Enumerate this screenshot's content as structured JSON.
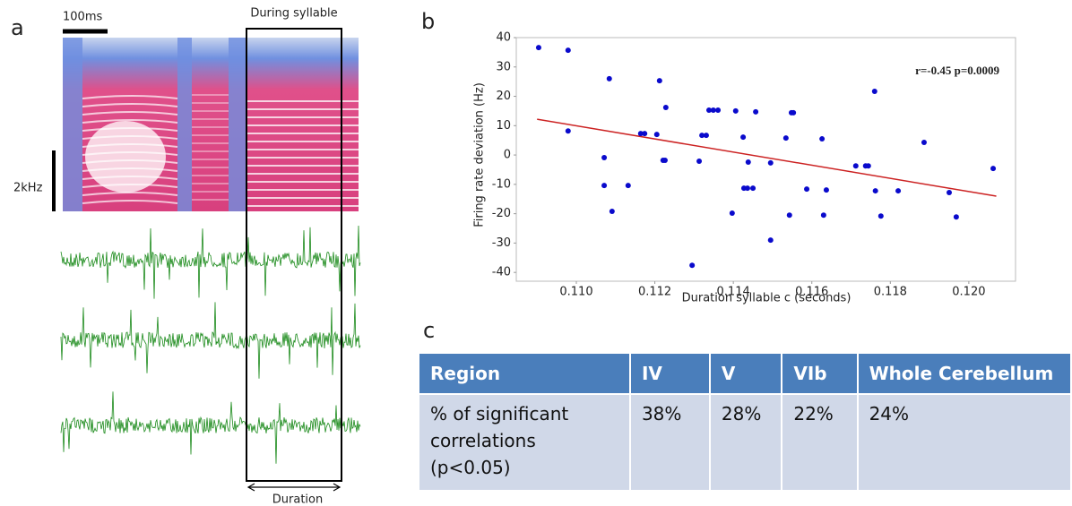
{
  "panels": {
    "a": "a",
    "b": "b",
    "c": "c"
  },
  "panel_a": {
    "scale_time": "100ms",
    "box_label": "During syllable",
    "scale_freq": "2kHz",
    "duration_label": "Duration"
  },
  "chart_data": {
    "type": "scatter",
    "x_label": "Duration syllable c (seconds)",
    "y_label": "Firing rate deviation (Hz)",
    "annotation": "r=-0.45 p=0.0009",
    "xlim": [
      0.10847,
      0.12119
    ],
    "ylim": [
      -43,
      40
    ],
    "xticks": [
      {
        "value": 0.11,
        "label": "0.110"
      },
      {
        "value": 0.112,
        "label": "0.112"
      },
      {
        "value": 0.114,
        "label": "0.114"
      },
      {
        "value": 0.116,
        "label": "0.116"
      },
      {
        "value": 0.118,
        "label": "0.118"
      },
      {
        "value": 0.12,
        "label": "0.120"
      }
    ],
    "yticks": [
      -40,
      -30,
      -20,
      -10,
      0,
      10,
      20,
      30,
      40
    ],
    "grid": false,
    "color": "#0a0acc",
    "x": [
      0.10904,
      0.10979,
      0.10979,
      0.11084,
      0.11071,
      0.11071,
      0.11091,
      0.11132,
      0.11164,
      0.11174,
      0.11205,
      0.11212,
      0.11221,
      0.11226,
      0.11228,
      0.11295,
      0.11313,
      0.1132,
      0.11331,
      0.11338,
      0.11349,
      0.11361,
      0.11397,
      0.11406,
      0.11425,
      0.11427,
      0.11436,
      0.11438,
      0.1145,
      0.11457,
      0.11495,
      0.11495,
      0.11534,
      0.11543,
      0.11548,
      0.11553,
      0.11587,
      0.11626,
      0.1163,
      0.11637,
      0.11712,
      0.11737,
      0.11744,
      0.1176,
      0.11762,
      0.11776,
      0.1182,
      0.11886,
      0.1195,
      0.11968,
      0.12062
    ],
    "y": [
      36.6,
      35.7,
      8.2,
      26.0,
      -0.9,
      -10.4,
      -19.2,
      -10.4,
      7.3,
      7.3,
      7.0,
      25.3,
      -1.8,
      -1.8,
      16.2,
      -37.6,
      -2.1,
      6.7,
      6.7,
      15.3,
      15.3,
      15.3,
      -19.8,
      15.0,
      6.1,
      -11.3,
      -11.3,
      -2.4,
      -11.3,
      14.7,
      -2.7,
      -29.0,
      5.8,
      -20.5,
      14.4,
      14.4,
      -11.6,
      5.5,
      -20.5,
      -11.9,
      -3.7,
      -3.7,
      -3.7,
      21.7,
      -12.2,
      -20.8,
      -12.2,
      4.3,
      -12.8,
      -21.1,
      -4.6
    ],
    "fit_line": {
      "color": "#cc2222",
      "x": [
        0.109,
        0.1207
      ],
      "y": [
        12.2,
        -14.0
      ]
    }
  },
  "table": {
    "header": [
      "Region",
      "IV",
      "V",
      "VIb",
      "Whole Cerebellum"
    ],
    "rows": [
      [
        "% of significant correlations (p<0.05)",
        "38%",
        "28%",
        "22%",
        "24%"
      ]
    ]
  }
}
